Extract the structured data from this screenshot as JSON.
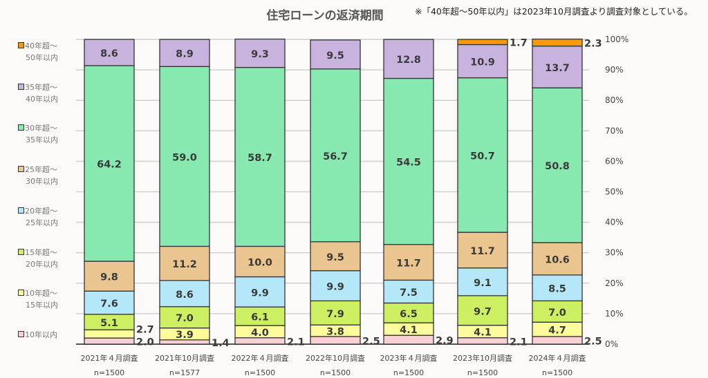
{
  "chart_data": {
    "type": "bar",
    "stacked": true,
    "title": "住宅ローンの返済期間",
    "note": "※「40年超～50年以内」は2023年10月調査より調査対象としている。",
    "categories": [
      "2021年４月調査",
      "2021年10月調査",
      "2022年４月調査",
      "2022年10月調査",
      "2023年４月調査",
      "2023年10月調査",
      "2024年４月調査"
    ],
    "sample_sizes": [
      "n=1500",
      "n=1577",
      "n=1500",
      "n=1500",
      "n=1500",
      "n=1500",
      "n=1500"
    ],
    "ylim": [
      0,
      100
    ],
    "yticks": [
      "0%",
      "10%",
      "20%",
      "30%",
      "40%",
      "50%",
      "60%",
      "70%",
      "80%",
      "90%",
      "100%"
    ],
    "grid": true,
    "legend_position": "left",
    "series": [
      {
        "name": "10年以内",
        "line1": "10年以内",
        "line2": "",
        "color": "#f9d0d4",
        "values": [
          2.0,
          1.4,
          2.1,
          2.5,
          2.9,
          2.1,
          2.5
        ]
      },
      {
        "name": "10年超～15年以内",
        "line1": "10年超～",
        "line2": "15年以内",
        "color": "#fbfb9c",
        "values": [
          2.7,
          3.9,
          4.0,
          3.8,
          4.1,
          4.1,
          4.7
        ]
      },
      {
        "name": "15年超～20年以内",
        "line1": "15年超～",
        "line2": "20年以内",
        "color": "#cdef62",
        "values": [
          5.1,
          7.0,
          6.1,
          7.9,
          6.5,
          9.7,
          7.0
        ]
      },
      {
        "name": "20年超～25年以内",
        "line1": "20年超～",
        "line2": "25年以内",
        "color": "#b4e8f8",
        "values": [
          7.6,
          8.6,
          9.9,
          9.9,
          7.5,
          9.1,
          8.5
        ]
      },
      {
        "name": "25年超～30年以内",
        "line1": "25年超～",
        "line2": "30年以内",
        "color": "#ebc590",
        "values": [
          9.8,
          11.2,
          10.0,
          9.5,
          11.7,
          11.7,
          10.6
        ]
      },
      {
        "name": "30年超～35年以内",
        "line1": "30年超～",
        "line2": "35年以内",
        "color": "#87e8b0",
        "values": [
          64.2,
          59.0,
          58.7,
          56.7,
          54.5,
          50.7,
          50.8
        ]
      },
      {
        "name": "35年超～40年以内",
        "line1": "35年超～",
        "line2": "40年以内",
        "color": "#c7b3dd",
        "values": [
          8.6,
          8.9,
          9.3,
          9.5,
          12.8,
          10.9,
          13.7
        ]
      },
      {
        "name": "40年超～50年以内",
        "line1": "40年超～",
        "line2": "50年以内",
        "color": "#f7990f",
        "values": [
          null,
          null,
          null,
          null,
          null,
          1.7,
          2.3
        ]
      }
    ]
  }
}
